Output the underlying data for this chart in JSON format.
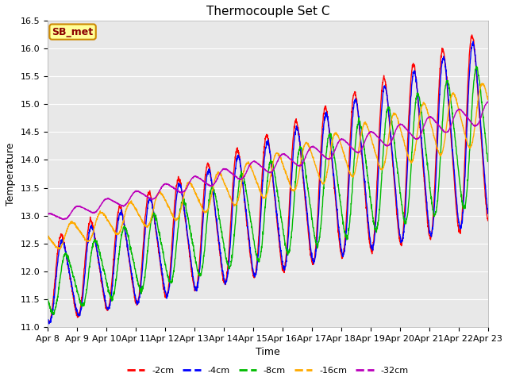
{
  "title": "Thermocouple Set C",
  "xlabel": "Time",
  "ylabel": "Temperature",
  "ylim": [
    11.0,
    16.5
  ],
  "yticks": [
    11.0,
    11.5,
    12.0,
    12.5,
    13.0,
    13.5,
    14.0,
    14.5,
    15.0,
    15.5,
    16.0,
    16.5
  ],
  "xtick_labels": [
    "Apr 8",
    "Apr 9",
    "Apr 10",
    "Apr 11",
    "Apr 12",
    "Apr 13",
    "Apr 14",
    "Apr 15",
    "Apr 16",
    "Apr 17",
    "Apr 18",
    "Apr 19",
    "Apr 20",
    "Apr 21",
    "Apr 22",
    "Apr 23"
  ],
  "colors": {
    "-2cm": "#ff0000",
    "-4cm": "#0000ff",
    "-8cm": "#00bb00",
    "-16cm": "#ffaa00",
    "-32cm": "#bb00bb"
  },
  "annotation": "SB_met",
  "annotation_bg": "#ffff99",
  "annotation_border": "#cc8800",
  "background_color": "#e8e8e8",
  "title_fontsize": 11,
  "label_fontsize": 9,
  "tick_fontsize": 8,
  "linewidth": 1.0
}
